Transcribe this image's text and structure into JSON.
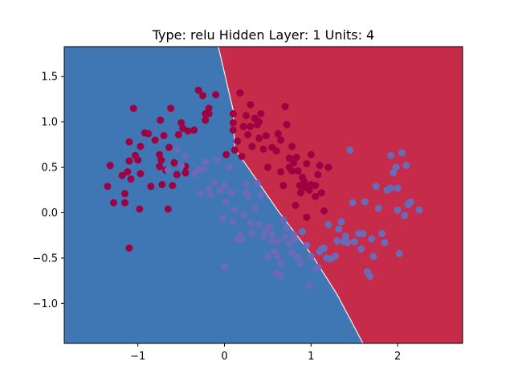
{
  "chart_data": {
    "type": "scatter",
    "title": "Type: relu Hidden Layer: 1 Units: 4",
    "xlim": [
      -1.85,
      2.75
    ],
    "ylim": [
      -1.44,
      1.83
    ],
    "x_ticks": [
      -1,
      0,
      1,
      2
    ],
    "y_ticks": [
      -1.0,
      -0.5,
      0.0,
      0.5,
      1.0,
      1.5
    ],
    "x_tick_labels": [
      "−1",
      "0",
      "1",
      "2"
    ],
    "y_tick_labels": [
      "−1.0",
      "−0.5",
      "0.0",
      "0.5",
      "1.0",
      "1.5"
    ],
    "grid": false,
    "legend": "none",
    "background_regions": {
      "boundary": [
        [
          -0.07,
          1.83
        ],
        [
          0.1,
          1.13
        ],
        [
          0.12,
          0.7
        ],
        [
          0.22,
          0.57
        ],
        [
          0.62,
          0.02
        ],
        [
          1.02,
          -0.48
        ],
        [
          1.3,
          -0.9
        ],
        [
          1.6,
          -1.44
        ]
      ],
      "left_color": "#3e77b4",
      "right_color": "#c62b49"
    },
    "series": [
      {
        "color": "#9e0142",
        "points": [
          [
            -1.35,
            0.29
          ],
          [
            -1.32,
            0.52
          ],
          [
            -1.28,
            0.11
          ],
          [
            -1.18,
            0.41
          ],
          [
            -1.15,
            0.21
          ],
          [
            -1.15,
            0.11
          ],
          [
            -1.12,
            0.45
          ],
          [
            -1.1,
            0.78
          ],
          [
            -1.1,
            0.57
          ],
          [
            -1.08,
            0.37
          ],
          [
            -1.1,
            -0.39
          ],
          [
            -1.05,
            1.15
          ],
          [
            -1.03,
            0.63
          ],
          [
            -1.0,
            0.58
          ],
          [
            -0.98,
            0.04
          ],
          [
            -0.97,
            0.43
          ],
          [
            -0.97,
            0.73
          ],
          [
            -0.92,
            0.88
          ],
          [
            -0.88,
            0.87
          ],
          [
            -0.85,
            0.29
          ],
          [
            -0.8,
            0.8
          ],
          [
            -0.75,
            0.51
          ],
          [
            -0.75,
            0.64
          ],
          [
            -0.74,
            1.02
          ],
          [
            -0.73,
            0.58
          ],
          [
            -0.72,
            0.31
          ],
          [
            -0.7,
            0.85
          ],
          [
            -0.68,
            0.47
          ],
          [
            -0.65,
            0.04
          ],
          [
            -0.64,
            0.72
          ],
          [
            -0.62,
            1.15
          ],
          [
            -0.6,
            0.3
          ],
          [
            -0.58,
            0.55
          ],
          [
            -0.55,
            0.42
          ],
          [
            -0.53,
            0.86
          ],
          [
            -0.5,
            0.99
          ],
          [
            -0.48,
            0.93
          ],
          [
            -0.45,
            0.51
          ],
          [
            -0.45,
            0.44
          ],
          [
            -0.42,
            0.9
          ],
          [
            -0.35,
            0.91
          ],
          [
            -0.3,
            1.35
          ],
          [
            -0.25,
            1.29
          ],
          [
            -0.22,
            1.02
          ],
          [
            -0.22,
            1.09
          ],
          [
            -0.18,
            1.09
          ],
          [
            -0.18,
            1.15
          ],
          [
            -0.1,
            1.3
          ],
          [
            0.02,
            0.64
          ],
          [
            0.1,
            1.09
          ],
          [
            0.1,
            0.99
          ],
          [
            0.1,
            0.91
          ],
          [
            0.12,
            0.69
          ],
          [
            0.15,
            0.79
          ],
          [
            0.18,
            1.32
          ],
          [
            0.2,
            0.62
          ],
          [
            0.22,
            0.95
          ],
          [
            0.25,
            1.07
          ],
          [
            0.27,
            0.86
          ],
          [
            0.3,
            1.19
          ],
          [
            0.3,
            0.95
          ],
          [
            0.32,
            0.73
          ],
          [
            0.35,
            1.04
          ],
          [
            0.38,
            0.97
          ],
          [
            0.4,
            1.0
          ],
          [
            0.4,
            0.82
          ],
          [
            0.42,
            1.09
          ],
          [
            0.45,
            0.7
          ],
          [
            0.48,
            0.85
          ],
          [
            0.5,
            0.5
          ],
          [
            0.55,
            0.72
          ],
          [
            0.6,
            0.68
          ],
          [
            0.62,
            0.87
          ],
          [
            0.65,
            0.45
          ],
          [
            0.65,
            0.8
          ],
          [
            0.68,
            0.3
          ],
          [
            0.7,
            1.17
          ],
          [
            0.72,
            0.97
          ],
          [
            0.75,
            0.6
          ],
          [
            0.75,
            0.5
          ],
          [
            0.78,
            0.46
          ],
          [
            0.78,
            0.73
          ],
          [
            0.8,
            0.55
          ],
          [
            0.82,
            0.08
          ],
          [
            0.83,
            0.61
          ],
          [
            0.85,
            0.46
          ],
          [
            0.87,
            0.3
          ],
          [
            0.88,
            0.22
          ],
          [
            0.9,
            0.39
          ],
          [
            0.92,
            0.34
          ],
          [
            0.93,
            0.28
          ],
          [
            0.95,
            0.54
          ],
          [
            0.95,
            -0.05
          ],
          [
            0.98,
            0.25
          ],
          [
            1.0,
            0.64
          ],
          [
            1.0,
            0.31
          ],
          [
            1.05,
            0.3
          ],
          [
            1.05,
            0.18
          ],
          [
            1.08,
            0.42
          ],
          [
            1.1,
            0.52
          ],
          [
            1.12,
            0.22
          ],
          [
            1.15,
            0.02
          ],
          [
            1.2,
            0.5
          ]
        ]
      },
      {
        "color": "#6a6bb8",
        "points": [
          [
            -0.65,
            0.47
          ],
          [
            -0.55,
            0.7
          ],
          [
            -0.5,
            0.52
          ],
          [
            -0.45,
            0.62
          ],
          [
            -0.35,
            0.43
          ],
          [
            -0.3,
            0.47
          ],
          [
            -0.28,
            0.21
          ],
          [
            -0.25,
            0.48
          ],
          [
            -0.22,
            0.56
          ],
          [
            -0.18,
            0.26
          ],
          [
            -0.16,
            0.2
          ],
          [
            -0.12,
            0.33
          ],
          [
            -0.08,
            0.58
          ],
          [
            -0.05,
            0.25
          ],
          [
            0.0,
            0.3
          ],
          [
            -0.02,
            -0.06
          ],
          [
            0.0,
            -0.6
          ],
          [
            0.02,
            0.12
          ],
          [
            0.05,
            0.5
          ],
          [
            0.08,
            0.22
          ],
          [
            0.1,
            -0.1
          ],
          [
            0.12,
            0.03
          ],
          [
            0.15,
            -0.3
          ],
          [
            0.18,
            -0.25
          ],
          [
            0.2,
            -0.29
          ],
          [
            0.22,
            -0.02
          ],
          [
            0.25,
            0.31
          ],
          [
            0.25,
            0.22
          ],
          [
            0.28,
            0.18
          ],
          [
            0.3,
            -0.12
          ],
          [
            0.32,
            -0.23
          ],
          [
            0.35,
            0.04
          ],
          [
            0.35,
            0.05
          ],
          [
            0.38,
            0.32
          ],
          [
            0.4,
            -0.13
          ],
          [
            0.42,
            0.19
          ],
          [
            0.45,
            -0.26
          ],
          [
            0.48,
            -0.2
          ],
          [
            0.5,
            -0.48
          ],
          [
            0.52,
            -0.15
          ],
          [
            0.55,
            -0.24
          ],
          [
            0.55,
            -0.32
          ],
          [
            0.58,
            -0.43
          ],
          [
            0.6,
            -0.67
          ],
          [
            0.62,
            -0.31
          ],
          [
            0.62,
            -0.48
          ],
          [
            0.65,
            -0.56
          ],
          [
            0.65,
            -0.69
          ],
          [
            0.68,
            -0.08
          ],
          [
            0.7,
            -0.27
          ],
          [
            0.72,
            -0.17
          ],
          [
            0.75,
            -0.34
          ],
          [
            0.78,
            -0.44
          ],
          [
            0.8,
            -0.24
          ],
          [
            0.82,
            -0.3
          ],
          [
            0.85,
            -0.49
          ],
          [
            0.88,
            -0.56
          ],
          [
            0.9,
            -0.21
          ],
          [
            0.95,
            -0.36
          ],
          [
            0.98,
            -0.8
          ],
          [
            1.0,
            -0.48
          ],
          [
            1.05,
            -0.62
          ],
          [
            1.08,
            -0.6
          ],
          [
            1.1,
            -0.43
          ],
          [
            1.12,
            -0.4
          ],
          [
            1.15,
            -0.39
          ],
          [
            1.18,
            -0.5
          ],
          [
            1.2,
            -0.13
          ],
          [
            1.22,
            -0.51
          ],
          [
            1.28,
            -0.48
          ],
          [
            1.3,
            -0.31
          ],
          [
            1.32,
            -0.18
          ],
          [
            1.35,
            -0.1
          ],
          [
            1.38,
            -0.32
          ],
          [
            1.4,
            -0.26
          ],
          [
            1.42,
            -0.33
          ],
          [
            1.45,
            0.69
          ],
          [
            1.48,
            0.11
          ],
          [
            1.5,
            -0.32
          ],
          [
            1.55,
            -0.23
          ],
          [
            1.58,
            -0.4
          ],
          [
            1.6,
            -0.23
          ],
          [
            1.62,
            0.12
          ],
          [
            1.65,
            -0.65
          ],
          [
            1.68,
            -0.7
          ],
          [
            1.7,
            -0.29
          ],
          [
            1.72,
            -0.48
          ],
          [
            1.75,
            0.29
          ],
          [
            1.78,
            0.05
          ],
          [
            1.82,
            -0.23
          ],
          [
            1.85,
            -0.33
          ],
          [
            1.88,
            0.25
          ],
          [
            1.92,
            0.63
          ],
          [
            1.92,
            0.27
          ],
          [
            1.95,
            0.44
          ],
          [
            1.98,
            0.5
          ],
          [
            2.0,
            0.27
          ],
          [
            2.0,
            0.03
          ],
          [
            2.02,
            -0.45
          ],
          [
            2.05,
            0.66
          ],
          [
            2.08,
            -0.03
          ],
          [
            2.1,
            0.52
          ],
          [
            2.12,
            0.09
          ],
          [
            2.15,
            0.12
          ],
          [
            2.25,
            0.03
          ]
        ]
      }
    ]
  }
}
